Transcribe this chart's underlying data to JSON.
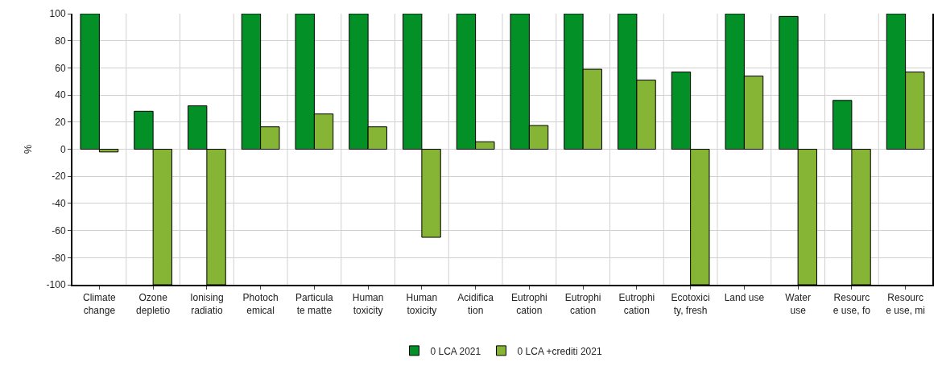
{
  "chart_data": {
    "type": "bar",
    "ylabel": "%",
    "categories": [
      "Climate\nchange",
      "Ozone\ndepletio",
      "Ionising\nradiatio",
      "Photoch\nemical",
      "Particula\nte matte",
      "Human\ntoxicity",
      "Human\ntoxicity",
      "Acidifica\ntion",
      "Eutrophi\ncation",
      "Eutrophi\ncation",
      "Eutrophi\ncation",
      "Ecotoxici\nty, fresh",
      "Land use",
      "Water\nuse",
      "Resourc\ne use, fo",
      "Resourc\ne use, mi"
    ],
    "series": [
      {
        "name": "0 LCA 2021",
        "color": "#039127",
        "values": [
          100,
          28,
          32,
          100,
          100,
          100,
          100,
          100,
          100,
          100,
          100,
          57,
          100,
          98,
          36,
          100
        ]
      },
      {
        "name": "0 LCA +crediti 2021",
        "color": "#86b535",
        "values": [
          -2,
          -100,
          -100,
          16.5,
          26,
          16.5,
          -65,
          5.5,
          17.5,
          59,
          51,
          -100,
          54,
          -100,
          -100,
          57
        ]
      }
    ],
    "ylim": [
      -100,
      100
    ],
    "yticks": [
      -100,
      -80,
      -60,
      -40,
      -20,
      0,
      20,
      40,
      60,
      80,
      100
    ],
    "grid": true,
    "legend": "bottom"
  }
}
